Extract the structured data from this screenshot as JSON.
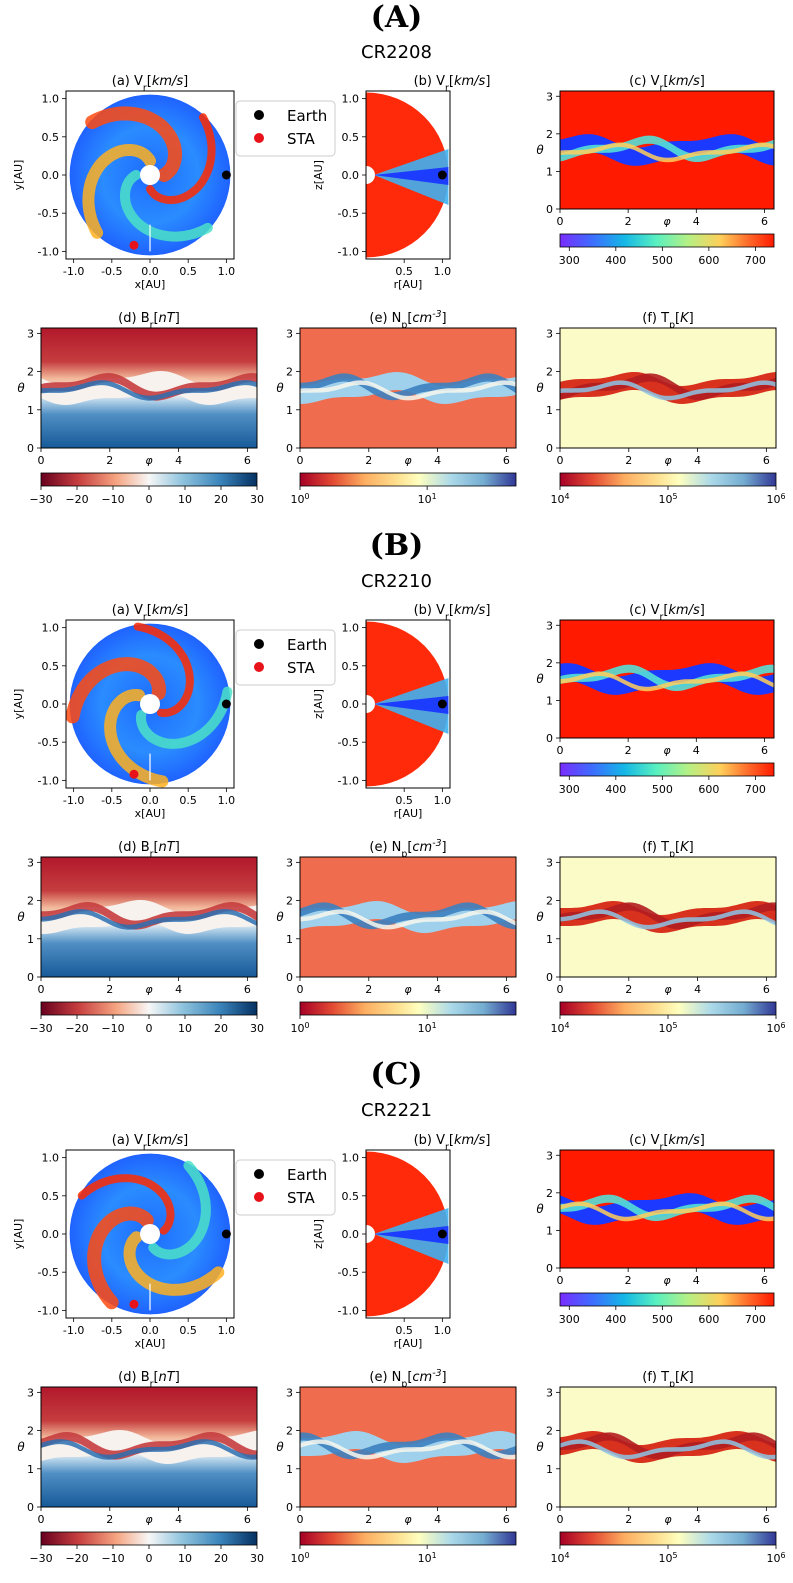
{
  "sections": [
    {
      "label": "(A)",
      "cr": "CR2208"
    },
    {
      "label": "(B)",
      "cr": "CR2210"
    },
    {
      "label": "(C)",
      "cr": "CR2221"
    }
  ],
  "panel_titles": {
    "a": "(a) V_r[km/s]",
    "b": "(b) V_r[km/s]",
    "c": "(c) V_r[km/s]",
    "d": "(d) B_r[nT]",
    "e": "(e) N_p[cm^-3]",
    "f": "(f) T_p[K]"
  },
  "legend": [
    {
      "label": "Earth",
      "color": "#000000"
    },
    {
      "label": "STA",
      "color": "#e8131a"
    }
  ],
  "chart_data": [
    {
      "type": "heatmap",
      "panel": "a",
      "title": "(a) Vr[km/s]",
      "xlabel": "x[AU]",
      "ylabel": "y[AU]",
      "xlim": [
        -1.1,
        1.1
      ],
      "ylim": [
        -1.1,
        1.1
      ],
      "xticks": [
        "-1.0",
        "-0.5",
        "0.0",
        "0.5",
        "1.0"
      ],
      "yticks": [
        "1.0",
        "0.5",
        "0.0",
        "-0.5",
        "-1.0"
      ],
      "markers": [
        {
          "name": "Earth",
          "x": 1.0,
          "y": 0.0
        },
        {
          "name": "STA",
          "x": -0.21,
          "y": -0.92
        }
      ]
    },
    {
      "type": "heatmap",
      "panel": "b",
      "title": "(b) Vr[km/s]",
      "xlabel": "r[AU]",
      "ylabel": "z[AU]",
      "xlim": [
        0,
        1.1
      ],
      "ylim": [
        -1.1,
        1.1
      ],
      "xticks": [
        "0.5",
        "1.0"
      ],
      "yticks": [
        "1.0",
        "0.5",
        "0.0",
        "-0.5",
        "-1.0"
      ],
      "markers": [
        {
          "name": "Earth",
          "x": 1.0,
          "y": 0.0
        }
      ]
    },
    {
      "type": "heatmap",
      "panel": "c",
      "title": "(c) Vr[km/s]",
      "xlabel": "φ",
      "ylabel": "θ",
      "xlim": [
        0,
        6.28
      ],
      "ylim": [
        0,
        3.14
      ],
      "xticks": [
        "0",
        "2",
        "4",
        "6"
      ],
      "yticks": [
        "3",
        "2",
        "1",
        "0"
      ],
      "colorbar": {
        "ticks": [
          "300",
          "400",
          "500",
          "600",
          "700"
        ],
        "range": [
          280,
          740
        ],
        "scale": "linear"
      }
    },
    {
      "type": "heatmap",
      "panel": "d",
      "title": "(d) Br[nT]",
      "xlabel": "φ",
      "ylabel": "θ",
      "xlim": [
        0,
        6.28
      ],
      "ylim": [
        0,
        3.14
      ],
      "xticks": [
        "0",
        "2",
        "4",
        "6"
      ],
      "yticks": [
        "3",
        "2",
        "1",
        "0"
      ],
      "colorbar": {
        "ticks": [
          "-30",
          "-20",
          "-10",
          "0",
          "10",
          "20",
          "30"
        ],
        "range": [
          -30,
          30
        ],
        "scale": "linear"
      }
    },
    {
      "type": "heatmap",
      "panel": "e",
      "title": "(e) Np[cm-3]",
      "xlabel": "φ",
      "ylabel": "θ",
      "xlim": [
        0,
        6.28
      ],
      "ylim": [
        0,
        3.14
      ],
      "xticks": [
        "0",
        "2",
        "4",
        "6"
      ],
      "yticks": [
        "3",
        "2",
        "1",
        "0"
      ],
      "colorbar": {
        "ticks": [
          "10^0",
          "10^1"
        ],
        "range": [
          1,
          50
        ],
        "scale": "log"
      }
    },
    {
      "type": "heatmap",
      "panel": "f",
      "title": "(f) Tp[K]",
      "xlabel": "φ",
      "ylabel": "θ",
      "xlim": [
        0,
        6.28
      ],
      "ylim": [
        0,
        3.14
      ],
      "xticks": [
        "0",
        "2",
        "4",
        "6"
      ],
      "yticks": [
        "3",
        "2",
        "1",
        "0"
      ],
      "colorbar": {
        "ticks": [
          "10^4",
          "10^5",
          "10^6"
        ],
        "range": [
          10000,
          1000000
        ],
        "scale": "log"
      }
    }
  ]
}
